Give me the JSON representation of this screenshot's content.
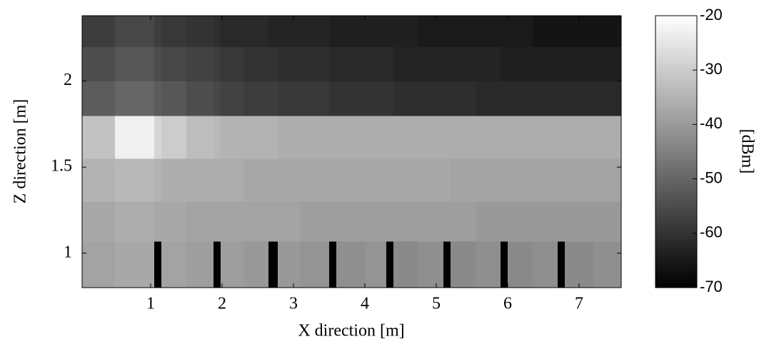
{
  "chart_data": {
    "type": "heatmap",
    "xlabel": "X direction [m]",
    "ylabel": "Z direction [m]",
    "colorbar_label": "[dBm]",
    "x_edges": [
      0.04,
      0.5,
      1.05,
      1.15,
      1.5,
      1.88,
      1.98,
      2.3,
      2.65,
      2.78,
      3.1,
      3.5,
      3.6,
      4.0,
      4.3,
      4.4,
      4.75,
      5.1,
      5.2,
      5.55,
      5.9,
      6.0,
      6.35,
      6.7,
      6.8,
      7.2,
      7.59
    ],
    "y_edges": [
      0.8,
      1.07,
      1.3,
      1.55,
      1.8,
      2.0,
      2.2,
      2.38
    ],
    "z": [
      [
        -38,
        -37,
        -70,
        -38,
        -39,
        -70,
        -39,
        -40,
        -70,
        -40,
        -41,
        -70,
        -42,
        -41,
        -70,
        -43,
        -42,
        -70,
        -43,
        -42,
        -70,
        -43,
        -42,
        -70,
        -43,
        -42
      ],
      [
        -37,
        -36,
        -37,
        -37,
        -38,
        -38,
        -38,
        -38,
        -38,
        -38,
        -39,
        -39,
        -39,
        -39,
        -39,
        -39,
        -39,
        -39,
        -39,
        -40,
        -40,
        -40,
        -40,
        -40,
        -40,
        -40
      ],
      [
        -35,
        -34,
        -35,
        -36,
        -36,
        -36,
        -36,
        -37,
        -37,
        -37,
        -37,
        -37,
        -37,
        -37,
        -37,
        -37,
        -37,
        -37,
        -38,
        -38,
        -38,
        -38,
        -38,
        -38,
        -38,
        -38
      ],
      [
        -32,
        -23,
        -28,
        -30,
        -33,
        -34,
        -35,
        -35,
        -35,
        -36,
        -36,
        -36,
        -36,
        -36,
        -36,
        -36,
        -36,
        -36,
        -36,
        -36,
        -36,
        -36,
        -36,
        -36,
        -36,
        -36
      ],
      [
        -52,
        -50,
        -52,
        -53,
        -55,
        -56,
        -57,
        -58,
        -58,
        -59,
        -59,
        -60,
        -60,
        -60,
        -60,
        -61,
        -61,
        -61,
        -61,
        -62,
        -62,
        -62,
        -62,
        -62,
        -62,
        -62
      ],
      [
        -55,
        -53,
        -55,
        -56,
        -57,
        -58,
        -59,
        -60,
        -60,
        -61,
        -61,
        -62,
        -62,
        -62,
        -62,
        -63,
        -63,
        -63,
        -63,
        -63,
        -64,
        -64,
        -64,
        -64,
        -64,
        -64
      ],
      [
        -58,
        -56,
        -58,
        -59,
        -60,
        -61,
        -62,
        -62,
        -63,
        -63,
        -63,
        -64,
        -64,
        -64,
        -64,
        -64,
        -65,
        -65,
        -65,
        -65,
        -65,
        -65,
        -66,
        -66,
        -66,
        -66
      ]
    ],
    "xlim": [
      0.04,
      7.59
    ],
    "ylim": [
      0.8,
      2.38
    ],
    "xticks": [
      1,
      2,
      3,
      4,
      5,
      6,
      7
    ],
    "yticks": [
      1,
      1.5,
      2
    ],
    "clim": [
      -70,
      -20
    ],
    "cticks": [
      -70,
      -60,
      -50,
      -40,
      -30,
      -20
    ]
  }
}
